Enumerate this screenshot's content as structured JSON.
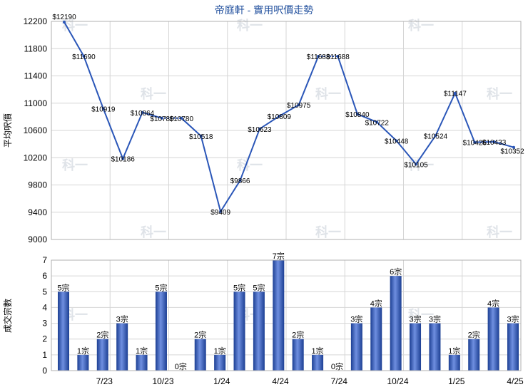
{
  "chart_data": [
    {
      "type": "line",
      "title": "帝庭軒 - 實用呎價走勢",
      "ylabel": "平均呎價",
      "ylim": [
        9000,
        12200
      ],
      "yticks": [
        9000,
        9400,
        9800,
        10200,
        10600,
        11000,
        11400,
        11800,
        12200
      ],
      "grid": true,
      "color": "#2a56b8",
      "points": [
        {
          "label": "$12190",
          "value": 12190
        },
        {
          "label": "$11690",
          "value": 11690
        },
        {
          "label": "$10919",
          "value": 10919
        },
        {
          "label": "$10186",
          "value": 10186
        },
        {
          "label": "$10864",
          "value": 10864
        },
        {
          "label": "$10780",
          "value": 10780
        },
        {
          "label": "$10780",
          "value": 10780
        },
        {
          "label": "$10518",
          "value": 10518
        },
        {
          "label": "$9409",
          "value": 9409
        },
        {
          "label": "$9866",
          "value": 9866
        },
        {
          "label": "$10623",
          "value": 10623
        },
        {
          "label": "$10809",
          "value": 10809
        },
        {
          "label": "$10975",
          "value": 10975
        },
        {
          "label": "$11688",
          "value": 11688
        },
        {
          "label": "$11688",
          "value": 11688
        },
        {
          "label": "$10840",
          "value": 10840
        },
        {
          "label": "$10722",
          "value": 10722
        },
        {
          "label": "$10448",
          "value": 10448
        },
        {
          "label": "$10105",
          "value": 10105
        },
        {
          "label": "$10524",
          "value": 10524
        },
        {
          "label": "$11147",
          "value": 11147
        },
        {
          "label": "$10426",
          "value": 10426
        },
        {
          "label": "$10433",
          "value": 10433
        },
        {
          "label": "$10352",
          "value": 10352
        }
      ]
    },
    {
      "type": "bar",
      "ylabel": "成交宗數",
      "ylim": [
        0,
        7
      ],
      "yticks": [
        0,
        1,
        2,
        3,
        4,
        5,
        6,
        7
      ],
      "grid": true,
      "color": "#2a56b8",
      "xticks": [
        "7/23",
        "10/23",
        "1/24",
        "4/24",
        "7/24",
        "10/24",
        "1/25",
        "4/25"
      ],
      "bars": [
        {
          "label": "5宗",
          "value": 5
        },
        {
          "label": "1宗",
          "value": 1
        },
        {
          "label": "2宗",
          "value": 2
        },
        {
          "label": "3宗",
          "value": 3
        },
        {
          "label": "1宗",
          "value": 1
        },
        {
          "label": "5宗",
          "value": 5
        },
        {
          "label": "0宗",
          "value": 0
        },
        {
          "label": "2宗",
          "value": 2
        },
        {
          "label": "1宗",
          "value": 1
        },
        {
          "label": "5宗",
          "value": 5
        },
        {
          "label": "5宗",
          "value": 5
        },
        {
          "label": "7宗",
          "value": 7
        },
        {
          "label": "2宗",
          "value": 2
        },
        {
          "label": "1宗",
          "value": 1
        },
        {
          "label": "0宗",
          "value": 0
        },
        {
          "label": "3宗",
          "value": 3
        },
        {
          "label": "4宗",
          "value": 4
        },
        {
          "label": "6宗",
          "value": 6
        },
        {
          "label": "3宗",
          "value": 3
        },
        {
          "label": "3宗",
          "value": 3
        },
        {
          "label": "1宗",
          "value": 1
        },
        {
          "label": "2宗",
          "value": 2
        },
        {
          "label": "4宗",
          "value": 4
        },
        {
          "label": "3宗",
          "value": 3
        }
      ]
    }
  ],
  "watermark": "科一"
}
